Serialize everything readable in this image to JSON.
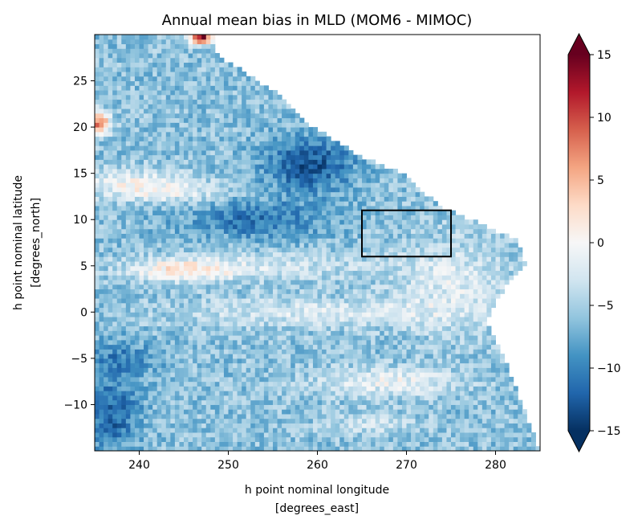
{
  "chart_data": {
    "type": "heatmap",
    "title": "Annual mean bias in MLD (MOM6 - MIMOC)",
    "xlabel": [
      "h point nominal longitude",
      "[degrees_east]"
    ],
    "ylabel": [
      "h point nominal latitude",
      "[degrees_north]"
    ],
    "xlim": [
      235,
      285
    ],
    "ylim": [
      -15,
      30
    ],
    "xticks": [
      240,
      250,
      260,
      270,
      280
    ],
    "xtick_labels": [
      "240",
      "250",
      "260",
      "270",
      "280"
    ],
    "yticks": [
      -10,
      -5,
      0,
      5,
      10,
      15,
      20,
      25
    ],
    "ytick_labels": [
      "−10",
      "−5",
      "0",
      "5",
      "10",
      "15",
      "20",
      "25"
    ],
    "colorbar": {
      "colormap": "RdBu_r",
      "vmin": -15,
      "vmax": 15,
      "extend": "both",
      "ticks": [
        -15,
        -10,
        -5,
        0,
        5,
        10,
        15
      ],
      "tick_labels": [
        "−15",
        "−10",
        "−5",
        "0",
        "5",
        "10",
        "15"
      ],
      "colors": [
        "#053061",
        "#2166ac",
        "#4393c3",
        "#92c5de",
        "#d1e5f0",
        "#f7f7f7",
        "#fddbc7",
        "#f4a582",
        "#d6604d",
        "#b2182b",
        "#67001f"
      ]
    },
    "highlight_box": {
      "lon": [
        265,
        275
      ],
      "lat": [
        6,
        11
      ],
      "color": "#000000"
    },
    "land_color": "#ffffff"
  }
}
